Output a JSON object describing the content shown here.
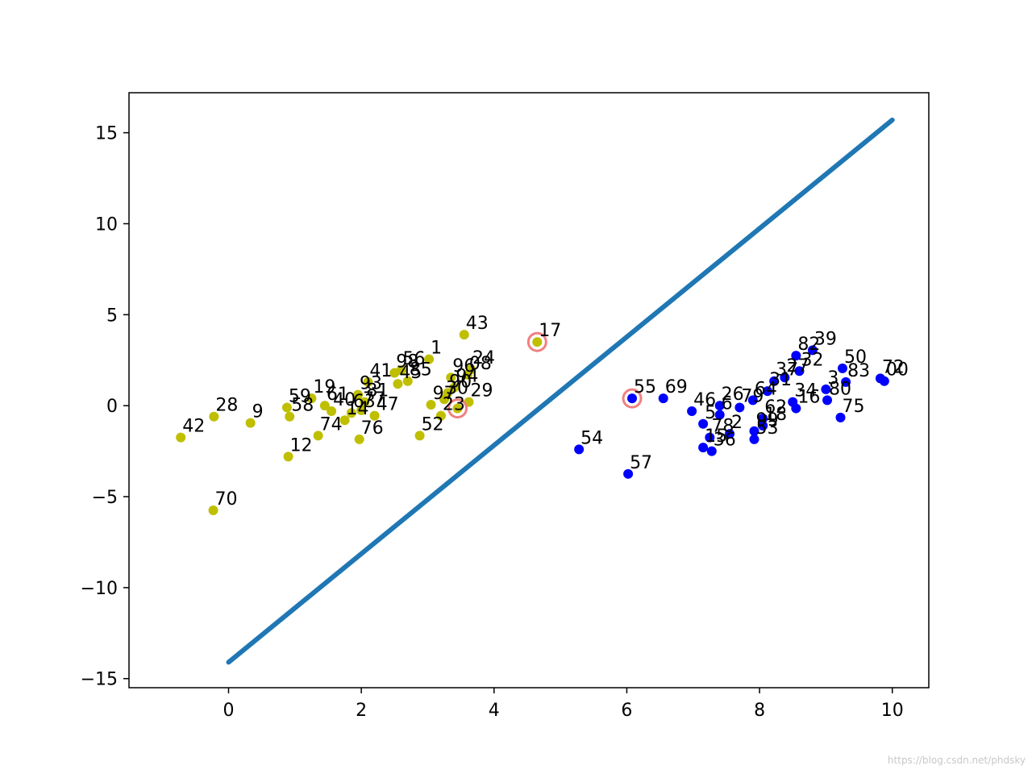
{
  "chart_data": {
    "type": "scatter",
    "xlim": [
      -1.5,
      10.55
    ],
    "ylim": [
      -15.5,
      17.2
    ],
    "x_ticks": [
      0,
      2,
      4,
      6,
      8,
      10
    ],
    "y_ticks": [
      -15,
      -10,
      -5,
      0,
      5,
      10,
      15
    ],
    "x_tick_labels": [
      "0",
      "2",
      "4",
      "6",
      "8",
      "10"
    ],
    "y_tick_labels": [
      "−15",
      "−10",
      "−5",
      "0",
      "5",
      "10",
      "15"
    ],
    "grid": false,
    "line": {
      "x": [
        0,
        10
      ],
      "y": [
        -14.1,
        15.7
      ],
      "color": "#1f77b4"
    },
    "colors": {
      "class_a": "#bfbf00",
      "class_b": "#0000ff",
      "highlight": "#f08080"
    },
    "series": [
      {
        "class": "a",
        "points": [
          {
            "label": "43",
            "x": 3.55,
            "y": 3.9
          },
          {
            "label": "1",
            "x": 3.02,
            "y": 2.55
          },
          {
            "label": "24",
            "x": 3.65,
            "y": 2.0
          },
          {
            "label": "08",
            "x": 3.6,
            "y": 1.7
          },
          {
            "label": "96",
            "x": 3.35,
            "y": 1.55
          },
          {
            "label": "56",
            "x": 2.6,
            "y": 1.95
          },
          {
            "label": "98",
            "x": 2.5,
            "y": 1.8
          },
          {
            "label": "41",
            "x": 2.1,
            "y": 1.3
          },
          {
            "label": "85",
            "x": 2.7,
            "y": 1.35
          },
          {
            "label": "45",
            "x": 2.55,
            "y": 1.2
          },
          {
            "label": "94",
            "x": 3.4,
            "y": 1.0
          },
          {
            "label": "90",
            "x": 3.3,
            "y": 0.7
          },
          {
            "label": "30",
            "x": 3.25,
            "y": 0.35
          },
          {
            "label": "29",
            "x": 3.62,
            "y": 0.2
          },
          {
            "label": "97",
            "x": 3.05,
            "y": 0.05
          },
          {
            "label": "23",
            "x": 3.2,
            "y": -0.55
          },
          {
            "label": "52",
            "x": 2.88,
            "y": -1.65
          },
          {
            "label": "19",
            "x": 1.25,
            "y": 0.4
          },
          {
            "label": "59",
            "x": 0.88,
            "y": -0.1
          },
          {
            "label": "58",
            "x": 0.92,
            "y": -0.6
          },
          {
            "label": "9",
            "x": 0.33,
            "y": -0.95
          },
          {
            "label": "28",
            "x": -0.22,
            "y": -0.6
          },
          {
            "label": "42",
            "x": -0.72,
            "y": -1.75
          },
          {
            "label": "12",
            "x": 0.9,
            "y": -2.8
          },
          {
            "label": "70",
            "x": -0.23,
            "y": -5.75
          },
          {
            "label": "74",
            "x": 1.35,
            "y": -1.65
          },
          {
            "label": "76",
            "x": 1.97,
            "y": -1.85
          },
          {
            "label": "47",
            "x": 2.2,
            "y": -0.55
          },
          {
            "label": "14",
            "x": 1.75,
            "y": -0.8
          },
          {
            "label": "63",
            "x": 1.85,
            "y": -0.4
          },
          {
            "label": "40",
            "x": 1.55,
            "y": -0.3
          },
          {
            "label": "61",
            "x": 1.45,
            "y": 0.0
          },
          {
            "label": "93",
            "x": 1.95,
            "y": 0.6
          },
          {
            "label": "81",
            "x": 2.05,
            "y": 0.2
          },
          {
            "label": "77",
            "x": 2.0,
            "y": -0.25
          },
          {
            "label": "17",
            "x": 4.65,
            "y": 3.5,
            "highlight": true
          },
          {
            "label": "",
            "x": 3.45,
            "y": -0.15,
            "highlight": true
          }
        ]
      },
      {
        "class": "b",
        "points": [
          {
            "label": "55",
            "x": 6.08,
            "y": 0.4,
            "highlight": true
          },
          {
            "label": "69",
            "x": 6.55,
            "y": 0.4
          },
          {
            "label": "54",
            "x": 5.28,
            "y": -2.4
          },
          {
            "label": "57",
            "x": 6.02,
            "y": -3.75
          },
          {
            "label": "46",
            "x": 6.98,
            "y": -0.3
          },
          {
            "label": "26",
            "x": 7.4,
            "y": 0.0
          },
          {
            "label": "79",
            "x": 7.7,
            "y": -0.1
          },
          {
            "label": "64",
            "x": 7.9,
            "y": 0.3
          },
          {
            "label": "5",
            "x": 7.15,
            "y": -1.0
          },
          {
            "label": "78",
            "x": 7.25,
            "y": -1.75
          },
          {
            "label": "2",
            "x": 7.55,
            "y": -1.55
          },
          {
            "label": "15",
            "x": 7.15,
            "y": -2.3
          },
          {
            "label": "36",
            "x": 7.28,
            "y": -2.5
          },
          {
            "label": "53",
            "x": 7.92,
            "y": -1.85
          },
          {
            "label": "18",
            "x": 8.05,
            "y": -1.1
          },
          {
            "label": "99",
            "x": 7.92,
            "y": -1.4
          },
          {
            "label": "16",
            "x": 8.55,
            "y": -0.15
          },
          {
            "label": "34",
            "x": 8.5,
            "y": 0.2
          },
          {
            "label": "31",
            "x": 8.12,
            "y": 0.8
          },
          {
            "label": "32",
            "x": 8.6,
            "y": 1.9
          },
          {
            "label": "82",
            "x": 8.55,
            "y": 2.75
          },
          {
            "label": "39",
            "x": 8.8,
            "y": 3.05
          },
          {
            "label": "3",
            "x": 9.0,
            "y": 0.9
          },
          {
            "label": "80",
            "x": 9.02,
            "y": 0.3
          },
          {
            "label": "75",
            "x": 9.22,
            "y": -0.65
          },
          {
            "label": "50",
            "x": 9.25,
            "y": 2.05
          },
          {
            "label": "83",
            "x": 9.3,
            "y": 1.3
          },
          {
            "label": "72",
            "x": 9.82,
            "y": 1.5
          },
          {
            "label": "00",
            "x": 9.88,
            "y": 1.35
          },
          {
            "label": "37",
            "x": 8.22,
            "y": 1.35
          },
          {
            "label": "27",
            "x": 8.38,
            "y": 1.55
          },
          {
            "label": "6",
            "x": 7.4,
            "y": -0.5
          },
          {
            "label": "62",
            "x": 8.05,
            "y": -0.7
          }
        ]
      }
    ]
  }
}
